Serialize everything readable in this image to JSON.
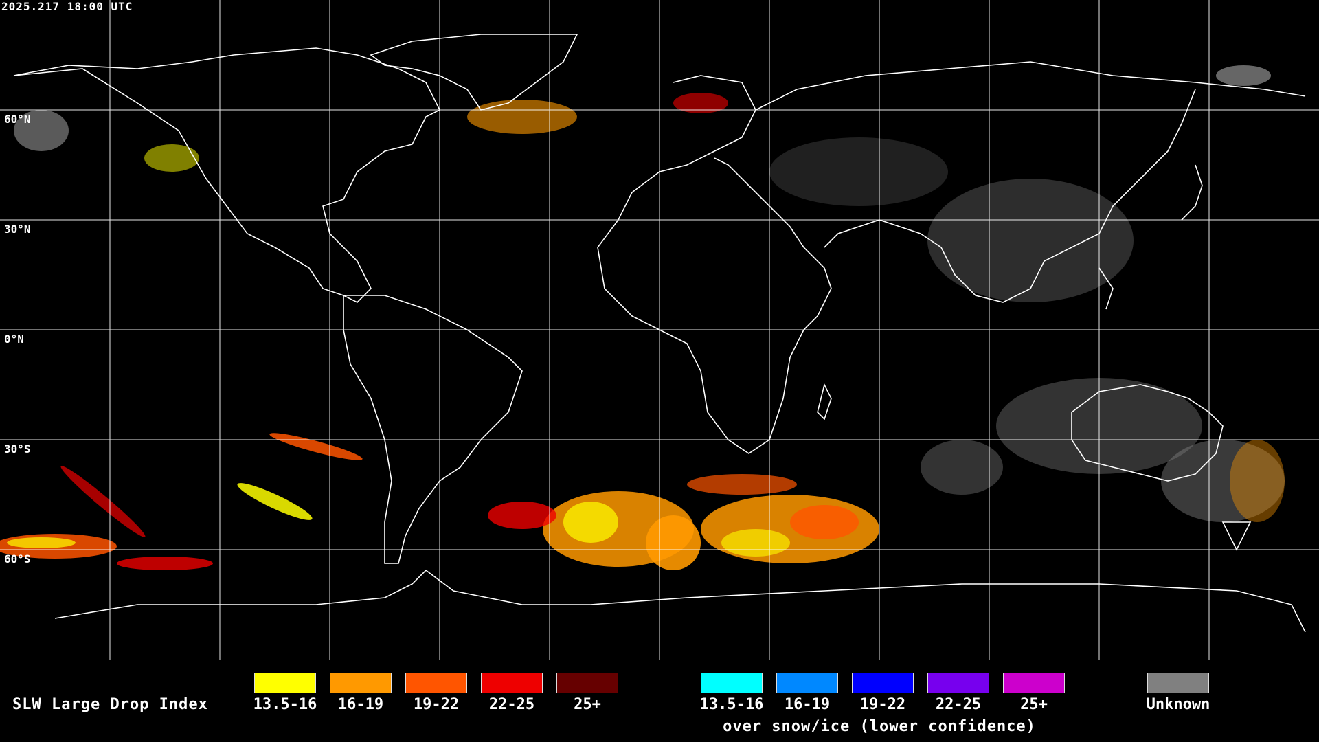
{
  "timestamp": "2025.217 18:00 UTC",
  "latitude_labels": [
    "60°N",
    "30°N",
    "0°N",
    "30°S",
    "60°S"
  ],
  "legend": {
    "title": "SLW Large Drop Index",
    "primary": [
      {
        "label": "13.5-16",
        "color": "#ffff00"
      },
      {
        "label": "16-19",
        "color": "#ff9900"
      },
      {
        "label": "19-22",
        "color": "#ff5500"
      },
      {
        "label": "22-25",
        "color": "#ee0000"
      },
      {
        "label": "25+",
        "color": "#660000"
      }
    ],
    "snow_ice": [
      {
        "label": "13.5-16",
        "color": "#00ffff"
      },
      {
        "label": "16-19",
        "color": "#0088ff"
      },
      {
        "label": "19-22",
        "color": "#0000ff"
      },
      {
        "label": "22-25",
        "color": "#7700ee"
      },
      {
        "label": "25+",
        "color": "#cc00cc"
      }
    ],
    "snow_ice_caption": "over snow/ice (lower confidence)",
    "unknown": {
      "label": "Unknown",
      "color": "#808080"
    }
  },
  "map_colors": {
    "background": "#000000",
    "coastline": "#ffffff",
    "grid": "#ffffff",
    "unknown": "#808080"
  }
}
